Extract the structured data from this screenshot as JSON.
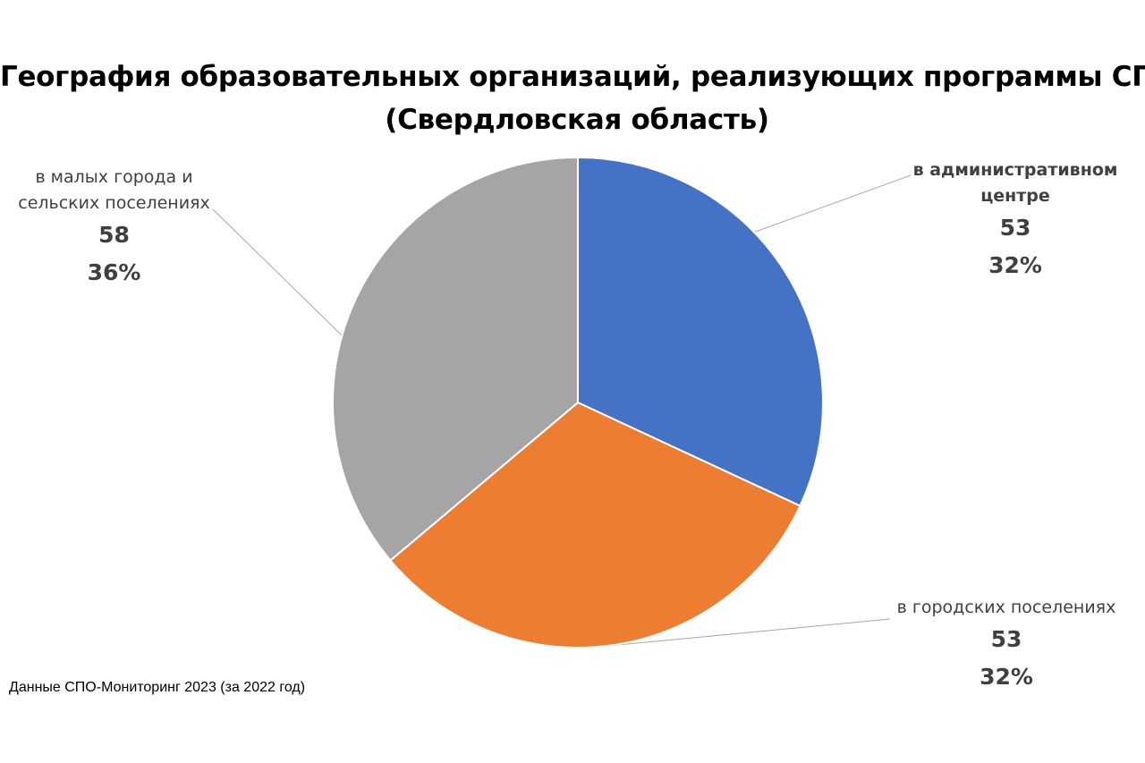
{
  "chart_data": {
    "type": "pie",
    "title_lines": [
      "География образовательных организаций, реализующих программы СПО",
      "(Свердловская область)"
    ],
    "slices": [
      {
        "label_lines": [
          "в административном",
          "центре"
        ],
        "value": "53",
        "percent": "32%",
        "share": 0.3193,
        "color": "#4472C4"
      },
      {
        "label_lines": [
          "в городских поселениях"
        ],
        "value": "53",
        "percent": "32%",
        "share": 0.3193,
        "color": "#ED7D31"
      },
      {
        "label_lines": [
          "в малых города и",
          "сельских поселениях"
        ],
        "value": "58",
        "percent": "36%",
        "share": 0.3614,
        "color": "#A5A5A5"
      }
    ],
    "start_angle": "12 o'clock",
    "direction": "clockwise",
    "legend": "none"
  },
  "footnote": "Данные СПО-Мониторинг 2023 (за 2022 год)"
}
